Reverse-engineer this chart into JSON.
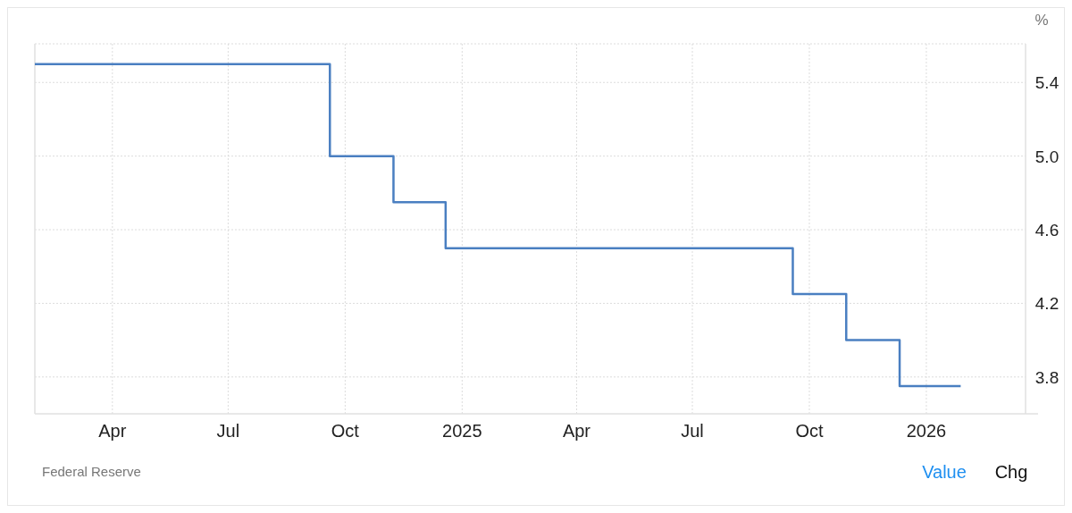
{
  "chart_data": {
    "type": "step",
    "ylabel": "%",
    "x": [
      "2024-01-31",
      "2024-09-19",
      "2024-11-08",
      "2024-12-19",
      "2025-09-18",
      "2025-10-30",
      "2025-12-11",
      "2026-01-28"
    ],
    "series": [
      {
        "color": "#4a7fc1",
        "values": [
          5.5,
          5.0,
          4.75,
          4.5,
          4.25,
          4.0,
          3.75,
          3.75
        ]
      }
    ],
    "xlim": [
      "2024-01-31",
      "2026-03-20"
    ],
    "xticks": [
      {
        "value": "2024-04-01",
        "label": "Apr"
      },
      {
        "value": "2024-07-01",
        "label": "Jul"
      },
      {
        "value": "2024-10-01",
        "label": "Oct"
      },
      {
        "value": "2025-01-01",
        "label": "2025"
      },
      {
        "value": "2025-04-01",
        "label": "Apr"
      },
      {
        "value": "2025-07-01",
        "label": "Jul"
      },
      {
        "value": "2025-10-01",
        "label": "Oct"
      },
      {
        "value": "2026-01-01",
        "label": "2026"
      }
    ],
    "ylim": [
      3.6,
      5.61
    ],
    "yticks": [
      3.8,
      4.2,
      4.6,
      {
        "value": 5,
        "label": "5.0"
      },
      5.4
    ],
    "grid": true,
    "line_style": "solid",
    "annotations": [
      "Federal Reserve",
      "Value",
      "Chg"
    ]
  }
}
